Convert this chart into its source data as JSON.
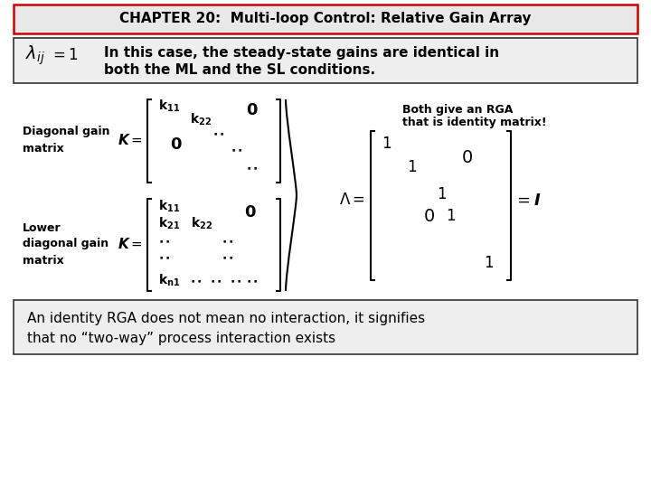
{
  "bg_color": "#ffffff",
  "title_box_facecolor": "#e8e8e8",
  "title_border_color": "#cc0000",
  "content_box_facecolor": "#eeeeee",
  "content_box_border": "#333333",
  "bottom_box_facecolor": "#eeeeee",
  "bottom_box_border": "#333333",
  "title_text": "CHAPTER 20:  Multi-loop Control: Relative Gain Array",
  "sub_line1": "In this case, the steady-state gains are identical in",
  "sub_line2": "both the ML and the SL conditions.",
  "diag_label": "Diagonal gain\nmatrix",
  "lower_label": "Lower\ndiagonal gain\nmatrix",
  "rga_line1": "Both give an RGA",
  "rga_line2": "that is identity matrix!",
  "bot_line1": "An identity RGA does not mean no interaction, it signifies",
  "bot_line2": "that no “two-way” process interaction exists"
}
